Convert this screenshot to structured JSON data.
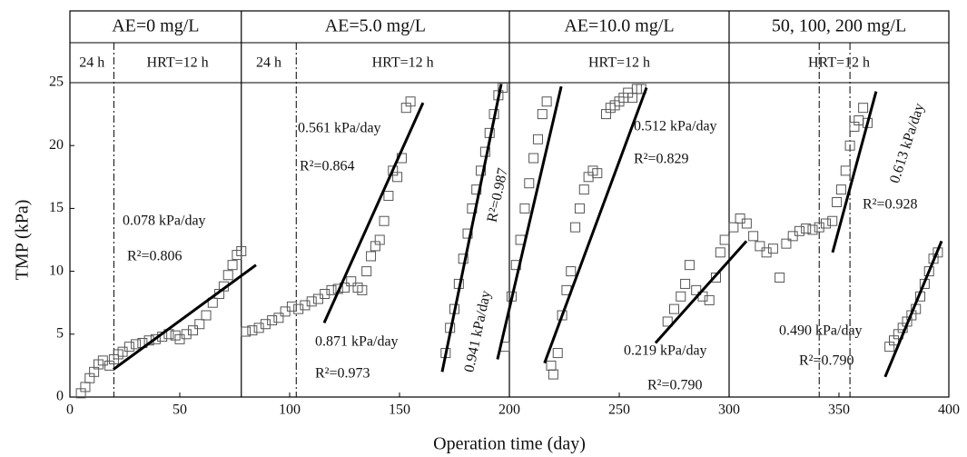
{
  "chart_data": {
    "type": "scatter",
    "xlabel": "Operation time (day)",
    "ylabel": "TMP (kPa)",
    "xlim": [
      0,
      400
    ],
    "xticks": [
      0,
      50,
      100,
      150,
      200,
      250,
      300,
      350,
      400
    ],
    "ylim": [
      0,
      25
    ],
    "yticks": [
      0,
      5,
      10,
      15,
      20,
      25
    ],
    "marker_color": "#555555",
    "line_color": "#000000",
    "header_row1": [
      {
        "label": "AE=0 mg/L",
        "span": [
          0,
          78
        ]
      },
      {
        "label": "AE=5.0 mg/L",
        "span": [
          78,
          200
        ]
      },
      {
        "label": "AE=10.0 mg/L",
        "span": [
          200,
          300
        ]
      },
      {
        "label": "50, 100, 200 mg/L",
        "span": [
          300,
          400
        ]
      }
    ],
    "header_row2": [
      {
        "label": "24 h",
        "span": [
          0,
          20
        ]
      },
      {
        "label": "HRT=12 h",
        "span": [
          20,
          78
        ]
      },
      {
        "label": "24 h",
        "span": [
          78,
          103
        ]
      },
      {
        "label": "HRT=12 h",
        "span": [
          103,
          200
        ]
      },
      {
        "label": "HRT=12 h",
        "span": [
          200,
          300
        ]
      },
      {
        "label": "HRT=12 h",
        "span": [
          300,
          400
        ]
      }
    ],
    "phase_lines": [
      {
        "x": 78,
        "style": "solid"
      },
      {
        "x": 200,
        "style": "solid"
      },
      {
        "x": 300,
        "style": "solid"
      },
      {
        "x": 20,
        "style": "dashdot"
      },
      {
        "x": 103,
        "style": "dashdot"
      },
      {
        "x": 341,
        "style": "dashdot"
      },
      {
        "x": 355,
        "style": "dashdot"
      }
    ],
    "x": [
      5,
      7,
      9,
      11,
      13,
      15,
      18,
      20,
      22,
      24,
      27,
      30,
      33,
      36,
      39,
      42,
      45,
      48,
      50,
      53,
      56,
      59,
      62,
      65,
      68,
      70,
      72,
      74,
      76,
      78,
      80,
      83,
      86,
      89,
      92,
      95,
      98,
      101,
      104,
      107,
      110,
      113,
      116,
      119,
      122,
      125,
      128,
      131,
      133,
      135,
      137,
      139,
      141,
      143,
      145,
      147,
      149,
      151,
      153,
      155,
      171,
      173,
      175,
      177,
      179,
      181,
      183,
      185,
      187,
      189,
      191,
      193,
      195,
      197,
      198,
      201,
      203,
      205,
      207,
      209,
      211,
      213,
      215,
      217,
      219,
      220,
      222,
      224,
      226,
      228,
      230,
      232,
      234,
      236,
      238,
      240,
      244,
      246,
      248,
      250,
      252,
      254,
      256,
      258,
      260,
      272,
      275,
      278,
      280,
      282,
      285,
      288,
      291,
      294,
      296,
      298,
      302,
      305,
      308,
      311,
      314,
      317,
      320,
      323,
      326,
      329,
      332,
      335,
      338,
      341,
      344,
      347,
      349,
      351,
      353,
      355,
      357,
      359,
      361,
      363,
      373,
      375,
      377,
      379,
      381,
      383,
      385,
      387,
      389,
      391,
      393,
      395
    ],
    "y": [
      0.3,
      0.8,
      1.5,
      2.0,
      2.6,
      2.9,
      2.5,
      3.0,
      3.4,
      3.6,
      4.0,
      4.2,
      4.3,
      4.5,
      4.6,
      4.8,
      5.0,
      4.9,
      4.6,
      5.0,
      5.3,
      5.8,
      6.5,
      7.5,
      8.2,
      8.8,
      9.7,
      10.5,
      11.3,
      11.6,
      5.2,
      5.3,
      5.5,
      5.8,
      6.1,
      6.3,
      6.8,
      7.2,
      7.0,
      7.3,
      7.6,
      7.8,
      8.2,
      8.5,
      8.6,
      8.7,
      9.2,
      8.7,
      8.5,
      10.0,
      11.2,
      12.0,
      12.5,
      14.0,
      16.0,
      18.0,
      17.5,
      19.0,
      23.0,
      23.5,
      3.5,
      5.5,
      7.0,
      9.0,
      11.0,
      13.0,
      15.0,
      16.5,
      18.0,
      19.5,
      21.0,
      22.5,
      24.0,
      24.6,
      4.0,
      8.0,
      10.5,
      12.5,
      15.0,
      17.0,
      19.0,
      20.5,
      22.5,
      23.5,
      2.5,
      1.8,
      3.5,
      6.5,
      8.5,
      10.0,
      13.5,
      15.0,
      16.5,
      17.5,
      18.0,
      17.8,
      22.5,
      23.0,
      23.2,
      23.5,
      23.8,
      24.2,
      23.8,
      24.5,
      24.5,
      6.0,
      7.0,
      8.0,
      9.0,
      10.5,
      8.5,
      8.0,
      7.7,
      9.5,
      11.5,
      12.5,
      13.5,
      14.2,
      13.8,
      12.8,
      12.0,
      11.5,
      11.8,
      9.5,
      12.2,
      12.8,
      13.2,
      13.4,
      13.3,
      13.5,
      13.8,
      14.0,
      15.5,
      16.5,
      18.0,
      20.0,
      21.5,
      22.0,
      23.0,
      21.8,
      4.0,
      4.5,
      5.0,
      5.5,
      6.0,
      6.5,
      7.0,
      8.0,
      9.0,
      10.0,
      11.0,
      11.5
    ],
    "trend_lines": [
      {
        "x": [
          19.8,
          84.7
        ],
        "y": [
          2.2,
          10.5
        ]
      },
      {
        "x": [
          115.7,
          160.7
        ],
        "y": [
          5.9,
          23.4
        ]
      },
      {
        "x": [
          169.4,
          196.3
        ],
        "y": [
          2.0,
          24.9
        ]
      },
      {
        "x": [
          194.6,
          223.6
        ],
        "y": [
          3.0,
          24.7
        ]
      },
      {
        "x": [
          216.0,
          262.4
        ],
        "y": [
          2.7,
          24.6
        ]
      },
      {
        "x": [
          266.5,
          307.9
        ],
        "y": [
          4.3,
          12.4
        ]
      },
      {
        "x": [
          347.1,
          366.9
        ],
        "y": [
          11.5,
          24.3
        ]
      },
      {
        "x": [
          371.0,
          396.7
        ],
        "y": [
          1.6,
          12.4
        ]
      }
    ],
    "annotations": [
      "0.078 kPa/day",
      "R²=0.806",
      "0.561 kPa/day",
      "R²=0.864",
      "0.871 kPa/day",
      "R²=0.973",
      "0.941 kPa/day",
      "R²=0.987",
      "0.512 kPa/day",
      "R²=0.829",
      "0.219 kPa/day",
      "R²=0.790",
      "0.613 kPa/day",
      "R²=0.928",
      "0.490 kPa/day",
      "R²=0.790"
    ]
  }
}
